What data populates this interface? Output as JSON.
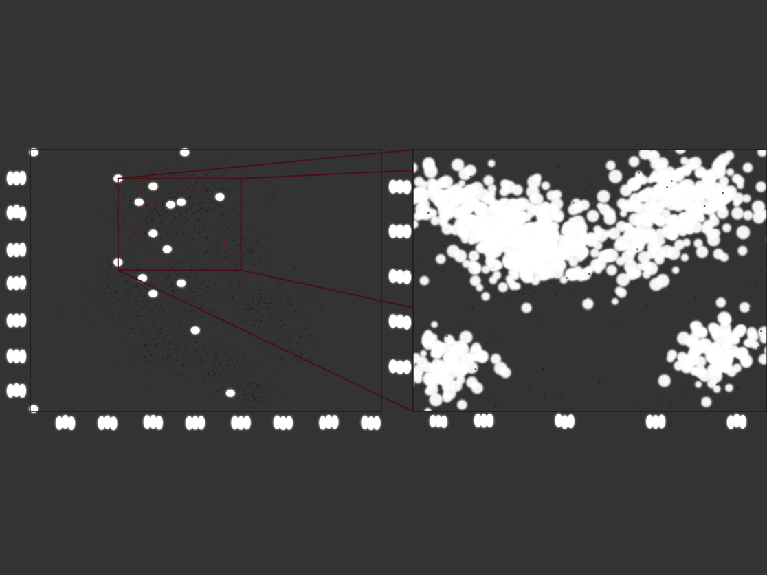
{
  "colors": {
    "background": "#333333",
    "axis": "#1a1a1a",
    "point_dark": "#1c1c1c",
    "point_red": "#7a1a1a",
    "glow_white": "#ffffff",
    "inset_frame": "#4a0f14"
  },
  "chart_data": [
    {
      "type": "scatter",
      "title": "",
      "xlabel": "",
      "ylabel": "",
      "xlim": [
        0,
        100
      ],
      "ylim": [
        0,
        100
      ],
      "grid": false,
      "legend": "none",
      "tick_labels_rendered_as": "glowing-blobs",
      "x_ticks": [
        10,
        22,
        35,
        47,
        60,
        72,
        85,
        97
      ],
      "y_ticks": [
        8,
        21,
        35,
        49,
        62,
        76,
        89
      ],
      "clusters": [
        {
          "cx": 36,
          "cy": 76,
          "spread": 7,
          "n": 240
        },
        {
          "cx": 49,
          "cy": 82,
          "spread": 6,
          "n": 160
        },
        {
          "cx": 57,
          "cy": 62,
          "spread": 5,
          "n": 110
        },
        {
          "cx": 28,
          "cy": 47,
          "spread": 6,
          "n": 150
        },
        {
          "cx": 45,
          "cy": 44,
          "spread": 7,
          "n": 170
        },
        {
          "cx": 67,
          "cy": 40,
          "spread": 6,
          "n": 150
        },
        {
          "cx": 38,
          "cy": 25,
          "spread": 5,
          "n": 120
        },
        {
          "cx": 52,
          "cy": 19,
          "spread": 5,
          "n": 90
        },
        {
          "cx": 62,
          "cy": 8,
          "spread": 3,
          "n": 60
        },
        {
          "cx": 74,
          "cy": 24,
          "spread": 4,
          "n": 70
        }
      ],
      "zoom_region": {
        "xlim": [
          25,
          60
        ],
        "ylim": [
          54,
          89
        ]
      },
      "highlight_points": [
        [
          25,
          89
        ],
        [
          35,
          86
        ],
        [
          31,
          80
        ],
        [
          40,
          79
        ],
        [
          43,
          80
        ],
        [
          54,
          82
        ],
        [
          35,
          68
        ],
        [
          39,
          62
        ],
        [
          25,
          57
        ],
        [
          32,
          51
        ],
        [
          43,
          49
        ],
        [
          35,
          45
        ],
        [
          47,
          31
        ],
        [
          57,
          7
        ],
        [
          44,
          99
        ],
        [
          1,
          99
        ],
        [
          1,
          1
        ]
      ]
    },
    {
      "type": "scatter",
      "title": "",
      "xlabel": "",
      "ylabel": "",
      "xlim": [
        25,
        60
      ],
      "ylim": [
        54,
        89
      ],
      "grid": false,
      "legend": "none",
      "point_style": "large-glowing-white",
      "tick_labels_rendered_as": "glowing-blobs",
      "x_ticks": [
        32,
        40,
        49,
        57
      ],
      "y_ticks": [
        60,
        66,
        72,
        78,
        84
      ],
      "clusters": [
        {
          "cx": 36,
          "cy": 77,
          "spread": 3.2,
          "n": 330
        },
        {
          "cx": 29,
          "cy": 82,
          "spread": 2.2,
          "n": 110
        },
        {
          "cx": 52,
          "cy": 82,
          "spread": 3.2,
          "n": 230
        },
        {
          "cx": 28,
          "cy": 60,
          "spread": 2.2,
          "n": 100
        },
        {
          "cx": 55,
          "cy": 62,
          "spread": 2.4,
          "n": 110
        },
        {
          "cx": 45,
          "cy": 76,
          "spread": 3.0,
          "n": 90
        }
      ]
    }
  ]
}
